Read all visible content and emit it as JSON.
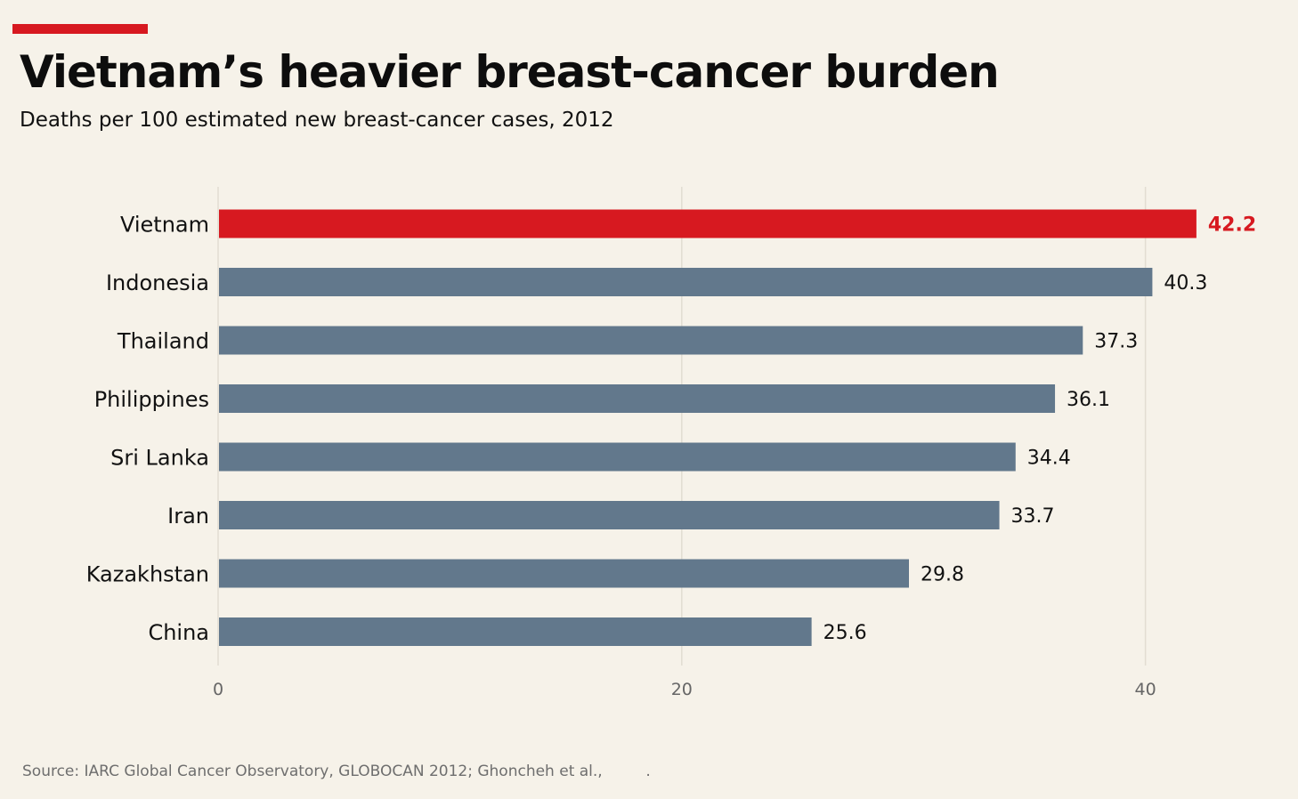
{
  "header": {
    "title": "Vietnam’s heavier breast-cancer burden",
    "subtitle": "Deaths per 100 estimated new breast-cancer cases, 2012"
  },
  "footer": {
    "source": "Source: IARC Global Cancer Observatory, GLOBOCAN 2012; Ghoncheh et al.,         ."
  },
  "colors": {
    "highlight": "#d71920",
    "bar": "#62788c",
    "accent": "#d71920",
    "grid": "#e2ddd2",
    "background": "#f6f2e9"
  },
  "chart_data": {
    "type": "bar",
    "orientation": "horizontal",
    "title": "Vietnam’s heavier breast-cancer burden",
    "subtitle": "Deaths per 100 estimated new breast-cancer cases, 2012",
    "categories": [
      "Vietnam",
      "Indonesia",
      "Thailand",
      "Philippines",
      "Sri Lanka",
      "Iran",
      "Kazakhstan",
      "China"
    ],
    "values": [
      42.2,
      40.3,
      37.3,
      36.1,
      34.4,
      33.7,
      29.8,
      25.6
    ],
    "value_labels": [
      "42.2",
      "40.3",
      "37.3",
      "36.1",
      "34.4",
      "33.7",
      "29.8",
      "25.6"
    ],
    "highlight": "Vietnam",
    "xlim": [
      0,
      46
    ],
    "xticks": [
      0,
      20,
      40
    ],
    "xtick_labels": [
      "0",
      "20",
      "40"
    ],
    "grid": true,
    "legend": "none"
  }
}
